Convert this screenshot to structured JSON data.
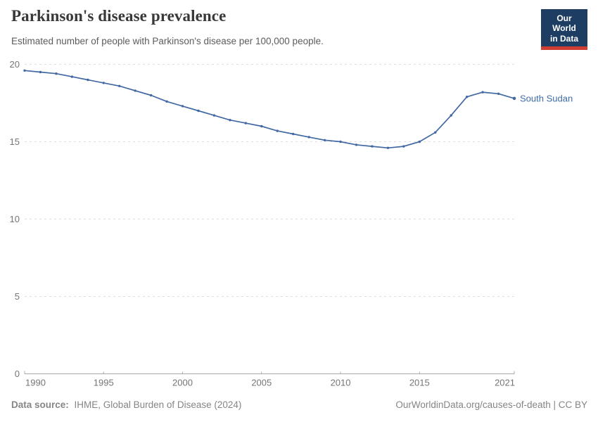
{
  "header": {
    "title": "Parkinson's disease prevalence",
    "subtitle": "Estimated number of people with Parkinson's disease per 100,000 people."
  },
  "logo": {
    "line1": "Our World",
    "line2": "in Data"
  },
  "chart_data": {
    "type": "line",
    "title": "Parkinson's disease prevalence",
    "xlabel": "",
    "ylabel": "",
    "xlim": [
      1990,
      2021
    ],
    "ylim": [
      0,
      20
    ],
    "x_ticks": [
      1990,
      1995,
      2000,
      2005,
      2010,
      2015,
      2021
    ],
    "y_ticks": [
      0,
      5,
      10,
      15,
      20
    ],
    "grid": "horizontal-dashed",
    "legend_position": "end-of-line-label",
    "series": [
      {
        "name": "South Sudan",
        "color": "#4268a3",
        "x": [
          1990,
          1991,
          1992,
          1993,
          1994,
          1995,
          1996,
          1997,
          1998,
          1999,
          2000,
          2001,
          2002,
          2003,
          2004,
          2005,
          2006,
          2007,
          2008,
          2009,
          2010,
          2011,
          2012,
          2013,
          2014,
          2015,
          2016,
          2017,
          2018,
          2019,
          2020,
          2021
        ],
        "values": [
          19.6,
          19.5,
          19.4,
          19.2,
          19.0,
          18.8,
          18.6,
          18.3,
          18.0,
          17.6,
          17.3,
          17.0,
          16.7,
          16.4,
          16.2,
          16.0,
          15.7,
          15.5,
          15.3,
          15.1,
          15.0,
          14.8,
          14.7,
          14.6,
          14.7,
          15.0,
          15.6,
          16.7,
          17.9,
          18.2,
          18.1,
          17.8
        ]
      }
    ]
  },
  "footer": {
    "source_label": "Data source:",
    "source_value": "IHME, Global Burden of Disease (2024)",
    "credit": "OurWorldinData.org/causes-of-death | CC BY"
  },
  "colors": {
    "line": "#4268a3",
    "entity_label": "#3d6ba6",
    "grid": "#dedede",
    "axis": "#a8a8a8",
    "tick_text": "#757575",
    "logo_bg": "#1d3d63",
    "logo_bar": "#d13d33"
  }
}
